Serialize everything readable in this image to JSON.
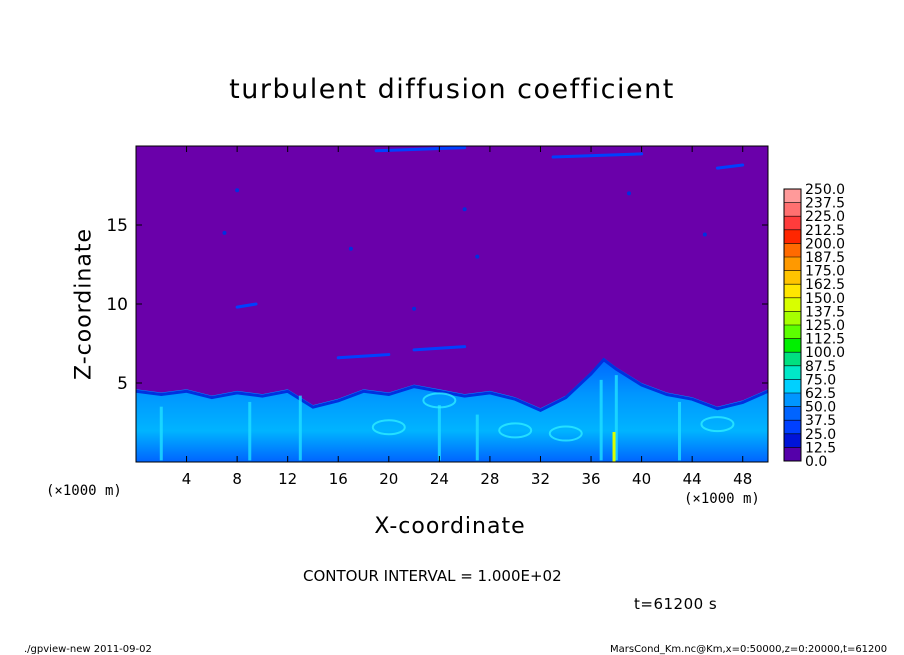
{
  "chart_data": {
    "type": "heatmap",
    "title": "turbulent diffusion coefficient",
    "xlabel": "X-coordinate",
    "ylabel": "Z-coordinate",
    "x_unit_label": "(×1000 m)",
    "x_ticks": [
      4,
      8,
      12,
      16,
      20,
      24,
      28,
      32,
      36,
      40,
      44,
      48
    ],
    "y_ticks": [
      5,
      10,
      15
    ],
    "xlim": [
      0,
      50
    ],
    "ylim": [
      0,
      20
    ],
    "colorbar": {
      "levels": [
        "250.0",
        "237.5",
        "225.0",
        "212.5",
        "200.0",
        "187.5",
        "175.0",
        "162.5",
        "150.0",
        "137.5",
        "125.0",
        "112.5",
        "100.0",
        "87.5",
        "75.0",
        "62.5",
        "50.0",
        "37.5",
        "25.0",
        "12.5",
        "0.0"
      ],
      "colors": [
        "#ff9a9a",
        "#ff7070",
        "#ff3c3c",
        "#ff2600",
        "#ff6a00",
        "#ff9900",
        "#ffc400",
        "#ffe600",
        "#d8ff00",
        "#a6ff00",
        "#5cff00",
        "#00f000",
        "#00e080",
        "#00e8c8",
        "#00d0ff",
        "#0096ff",
        "#0064ff",
        "#0040ff",
        "#0014d8",
        "#5500aa"
      ]
    },
    "boundary_layer_top_km": [
      [
        0,
        4.6
      ],
      [
        2,
        4.4
      ],
      [
        4,
        4.6
      ],
      [
        6,
        4.2
      ],
      [
        8,
        4.5
      ],
      [
        10,
        4.3
      ],
      [
        12,
        4.6
      ],
      [
        14,
        3.6
      ],
      [
        16,
        4.0
      ],
      [
        18,
        4.6
      ],
      [
        20,
        4.4
      ],
      [
        22,
        4.9
      ],
      [
        24,
        4.6
      ],
      [
        26,
        4.3
      ],
      [
        28,
        4.5
      ],
      [
        30,
        4.1
      ],
      [
        32,
        3.4
      ],
      [
        34,
        4.2
      ],
      [
        36,
        5.7
      ],
      [
        37,
        6.6
      ],
      [
        38,
        6.0
      ],
      [
        40,
        5.0
      ],
      [
        42,
        4.4
      ],
      [
        44,
        4.1
      ],
      [
        46,
        3.5
      ],
      [
        48,
        3.9
      ],
      [
        50,
        4.6
      ]
    ]
  },
  "contour_interval": "CONTOUR INTERVAL = 1.000E+02",
  "time_label": "t=61200 s",
  "footer_left": "./gpview-new  2011-09-02",
  "footer_right": "MarsCond_Km.nc@Km,x=0:50000,z=0:20000,t=61200"
}
